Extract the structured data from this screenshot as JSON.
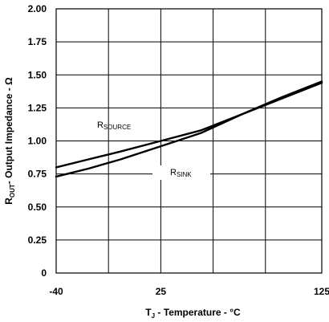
{
  "chart_data": {
    "type": "line",
    "xlabel": {
      "main": "T",
      "sub": "J",
      "rest": " - Temperature - °C"
    },
    "ylabel": {
      "main": "R",
      "sub": "OUT",
      "rest": "- Output Impedance - Ω"
    },
    "xlim": [
      -40,
      125
    ],
    "ylim": [
      0,
      2.0
    ],
    "x_ticks": [
      "-40",
      "25",
      "125"
    ],
    "x_grid": [
      -40,
      -7.5,
      25,
      57.5,
      90,
      125
    ],
    "y_ticks": [
      "0",
      "0.25",
      "0.50",
      "0.75",
      "1.00",
      "1.25",
      "1.50",
      "1.75",
      "2.00"
    ],
    "grid": true,
    "series": [
      {
        "name": {
          "main": "R",
          "sub": "SOURCE"
        },
        "color": "#000000",
        "x": [
          -40,
          -20,
          0,
          25,
          50,
          75,
          100,
          125
        ],
        "y": [
          0.8,
          0.86,
          0.92,
          1.0,
          1.08,
          1.2,
          1.33,
          1.45
        ]
      },
      {
        "name": {
          "main": "R",
          "sub": "SINK"
        },
        "color": "#000000",
        "x": [
          -40,
          -20,
          0,
          25,
          50,
          75,
          100,
          125
        ],
        "y": [
          0.73,
          0.79,
          0.86,
          0.96,
          1.06,
          1.2,
          1.32,
          1.44
        ]
      }
    ]
  }
}
